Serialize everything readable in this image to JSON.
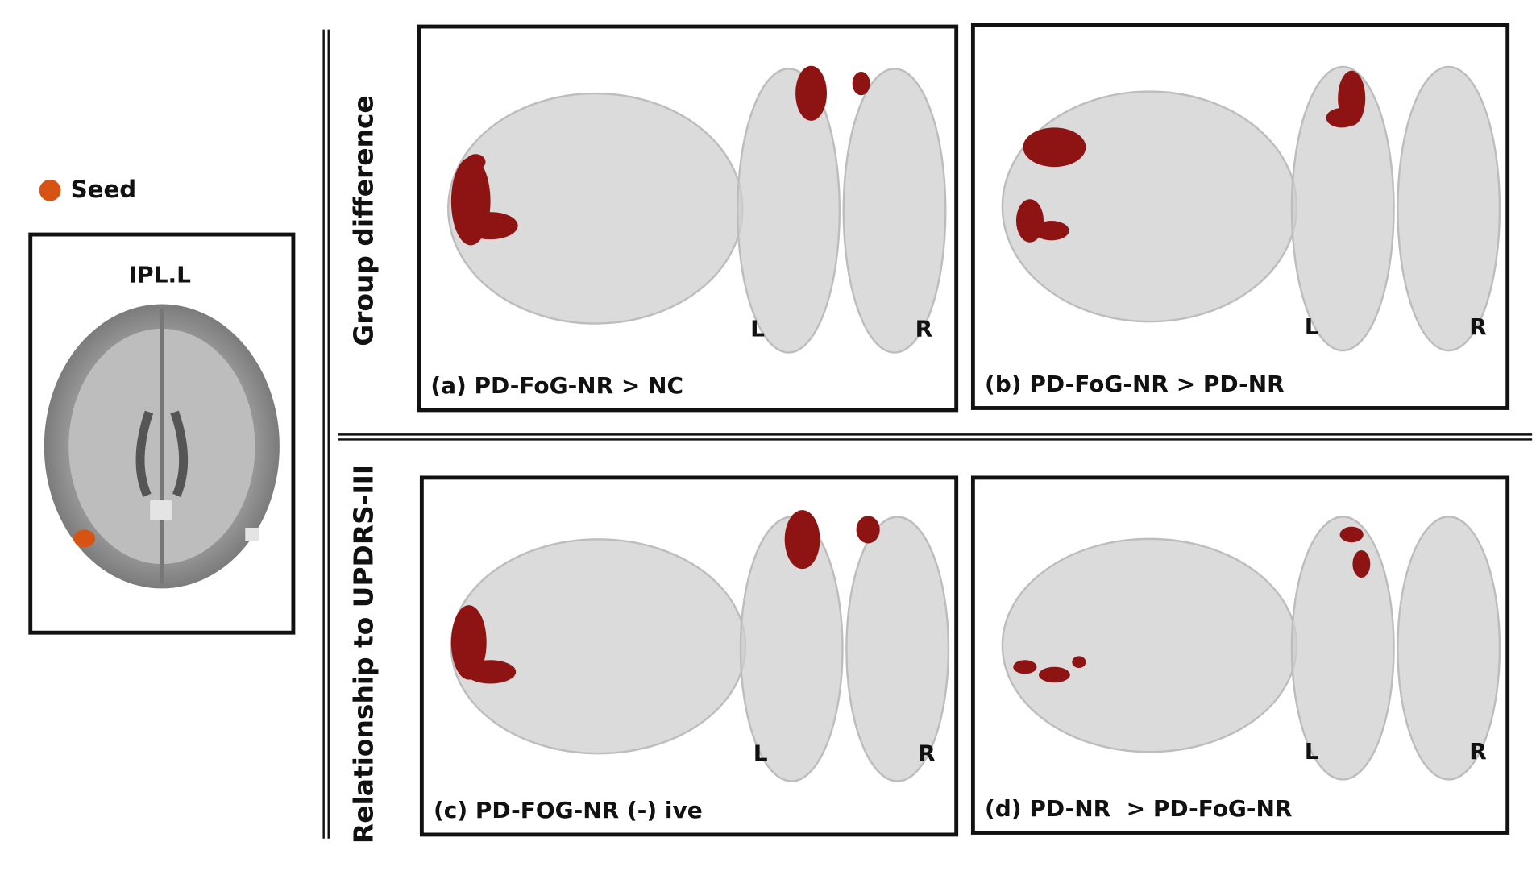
{
  "legend": {
    "label": "Seed"
  },
  "seed_panel": {
    "title": "IPL.L"
  },
  "rows": [
    {
      "label": "Group difference"
    },
    {
      "label": "Relationship to UPDRS-III"
    }
  ],
  "panels": [
    {
      "caption": "(a) PD-FoG-NR > NC",
      "left_label": "L",
      "right_label": "R"
    },
    {
      "caption": "(b) PD-FoG-NR > PD-NR",
      "left_label": "L",
      "right_label": "R"
    },
    {
      "caption": "(c) PD-FOG-NR (-) ive",
      "left_label": "L",
      "right_label": "R"
    },
    {
      "caption": "(d) PD-NR  > PD-FoG-NR",
      "left_label": "L",
      "right_label": "R"
    }
  ]
}
